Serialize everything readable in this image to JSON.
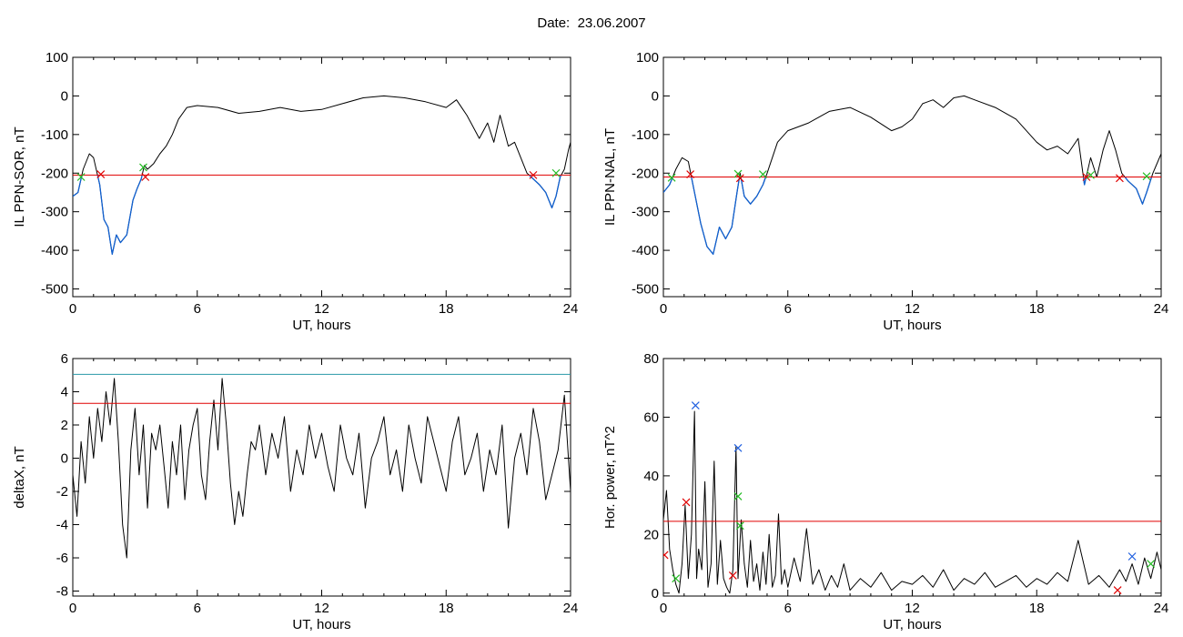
{
  "header": {
    "date_label": "Date:",
    "date_value": "23.06.2007"
  },
  "chart_data": [
    {
      "type": "line",
      "xlabel": "UT, hours",
      "ylabel": "IL PPN-SOR, nT",
      "xlim": [
        0,
        24
      ],
      "ylim": [
        -520,
        100
      ],
      "xticks": [
        0,
        6,
        12,
        18,
        24
      ],
      "yticks": [
        100,
        0,
        -100,
        -200,
        -300,
        -400,
        -500
      ],
      "threshold": {
        "value": -205,
        "color": "#e00000"
      },
      "below_color": "#1060d0",
      "marker_colors": {
        "red": "#e00000",
        "green": "#22bb22"
      },
      "series": [
        {
          "x": [
            0,
            0.25,
            0.5,
            0.8,
            1.0,
            1.3,
            1.5,
            1.7,
            1.9,
            2.1,
            2.3,
            2.6,
            2.9,
            3.1,
            3.3,
            3.45,
            3.6,
            3.9,
            4.2,
            4.5,
            4.8,
            5.1,
            5.5,
            6.0,
            7.0,
            8.0,
            9.0,
            10.0,
            11.0,
            12.0,
            13.0,
            14.0,
            15.0,
            16.0,
            17.0,
            18.0,
            18.5,
            19.0,
            19.3,
            19.6,
            20.0,
            20.3,
            20.6,
            21.0,
            21.3,
            21.6,
            21.9,
            22.2,
            22.5,
            22.8,
            23.1,
            23.3,
            23.5,
            23.7,
            23.9,
            24.0
          ],
          "y": [
            -260,
            -250,
            -190,
            -150,
            -160,
            -230,
            -320,
            -340,
            -410,
            -360,
            -380,
            -360,
            -270,
            -240,
            -215,
            -180,
            -190,
            -175,
            -150,
            -130,
            -100,
            -60,
            -30,
            -25,
            -30,
            -45,
            -40,
            -30,
            -40,
            -35,
            -20,
            -5,
            0,
            -5,
            -15,
            -30,
            -10,
            -50,
            -80,
            -110,
            -70,
            -120,
            -50,
            -130,
            -120,
            -160,
            -200,
            -215,
            -230,
            -250,
            -290,
            -260,
            -210,
            -190,
            -140,
            -120
          ]
        }
      ],
      "markers": [
        {
          "x": 0.4,
          "y": -210,
          "color": "green"
        },
        {
          "x": 1.35,
          "y": -203,
          "color": "red"
        },
        {
          "x": 3.4,
          "y": -185,
          "color": "green"
        },
        {
          "x": 3.5,
          "y": -210,
          "color": "red"
        },
        {
          "x": 22.2,
          "y": -205,
          "color": "red"
        },
        {
          "x": 23.3,
          "y": -200,
          "color": "green"
        }
      ]
    },
    {
      "type": "line",
      "xlabel": "UT, hours",
      "ylabel": "IL PPN-NAL, nT",
      "xlim": [
        0,
        24
      ],
      "ylim": [
        -520,
        100
      ],
      "xticks": [
        0,
        6,
        12,
        18,
        24
      ],
      "yticks": [
        100,
        0,
        -100,
        -200,
        -300,
        -400,
        -500
      ],
      "threshold": {
        "value": -210,
        "color": "#e00000"
      },
      "below_color": "#1060d0",
      "marker_colors": {
        "red": "#e00000",
        "green": "#22bb22"
      },
      "series": [
        {
          "x": [
            0,
            0.3,
            0.6,
            0.9,
            1.2,
            1.5,
            1.8,
            2.1,
            2.4,
            2.7,
            3.0,
            3.3,
            3.55,
            3.7,
            3.9,
            4.2,
            4.5,
            4.8,
            5.0,
            5.5,
            6.0,
            7.0,
            8.0,
            9.0,
            10.0,
            11.0,
            11.5,
            12.0,
            12.5,
            13.0,
            13.5,
            14.0,
            14.5,
            15.0,
            16.0,
            17.0,
            18.0,
            18.5,
            19.0,
            19.5,
            20.0,
            20.3,
            20.6,
            20.9,
            21.2,
            21.5,
            21.8,
            22.1,
            22.4,
            22.8,
            23.1,
            23.3,
            23.6,
            24.0
          ],
          "y": [
            -250,
            -230,
            -190,
            -160,
            -170,
            -250,
            -330,
            -390,
            -410,
            -340,
            -370,
            -340,
            -250,
            -200,
            -260,
            -280,
            -260,
            -230,
            -200,
            -120,
            -90,
            -70,
            -40,
            -30,
            -55,
            -90,
            -80,
            -60,
            -20,
            -10,
            -30,
            -5,
            0,
            -10,
            -30,
            -60,
            -120,
            -140,
            -130,
            -150,
            -110,
            -230,
            -160,
            -210,
            -140,
            -90,
            -140,
            -200,
            -220,
            -240,
            -280,
            -250,
            -200,
            -150
          ]
        }
      ],
      "markers": [
        {
          "x": 0.4,
          "y": -212,
          "color": "green"
        },
        {
          "x": 1.3,
          "y": -203,
          "color": "red"
        },
        {
          "x": 3.6,
          "y": -202,
          "color": "green"
        },
        {
          "x": 3.7,
          "y": -213,
          "color": "red"
        },
        {
          "x": 4.8,
          "y": -203,
          "color": "green"
        },
        {
          "x": 20.4,
          "y": -210,
          "color": "red"
        },
        {
          "x": 20.6,
          "y": -205,
          "color": "green"
        },
        {
          "x": 22.0,
          "y": -213,
          "color": "red"
        },
        {
          "x": 23.3,
          "y": -208,
          "color": "green"
        }
      ]
    },
    {
      "type": "line",
      "xlabel": "UT, hours",
      "ylabel": "deltaX, nT",
      "xlim": [
        0,
        24
      ],
      "ylim": [
        -8.3,
        6
      ],
      "xticks": [
        0,
        6,
        12,
        18,
        24
      ],
      "yticks": [
        6,
        4,
        2,
        0,
        -2,
        -4,
        -6,
        -8
      ],
      "thresholds": [
        {
          "value": 5.05,
          "color": "#2a9aa8"
        },
        {
          "value": 3.3,
          "color": "#e00000"
        }
      ],
      "series": [
        {
          "x": [
            0,
            0.2,
            0.4,
            0.6,
            0.8,
            1.0,
            1.2,
            1.4,
            1.6,
            1.8,
            2.0,
            2.2,
            2.4,
            2.6,
            2.8,
            3.0,
            3.2,
            3.4,
            3.6,
            3.8,
            4.0,
            4.2,
            4.4,
            4.6,
            4.8,
            5.0,
            5.2,
            5.4,
            5.6,
            5.8,
            6.0,
            6.2,
            6.4,
            6.6,
            6.8,
            7.0,
            7.2,
            7.4,
            7.6,
            7.8,
            8.0,
            8.2,
            8.4,
            8.6,
            8.8,
            9.0,
            9.3,
            9.6,
            9.9,
            10.2,
            10.5,
            10.8,
            11.1,
            11.4,
            11.7,
            12.0,
            12.3,
            12.6,
            12.9,
            13.2,
            13.5,
            13.8,
            14.1,
            14.4,
            14.7,
            15.0,
            15.3,
            15.6,
            15.9,
            16.2,
            16.5,
            16.8,
            17.1,
            17.4,
            17.7,
            18.0,
            18.3,
            18.6,
            18.9,
            19.2,
            19.5,
            19.8,
            20.1,
            20.4,
            20.7,
            21.0,
            21.3,
            21.6,
            21.9,
            22.2,
            22.5,
            22.8,
            23.1,
            23.4,
            23.7,
            24.0
          ],
          "y": [
            -1,
            -3.5,
            1,
            -1.5,
            2.5,
            0,
            3,
            1,
            4,
            2,
            4.8,
            1,
            -4,
            -6,
            0.5,
            3,
            -1,
            2,
            -3,
            1.5,
            0.5,
            2,
            -0.5,
            -3,
            1,
            -1,
            2,
            -2.5,
            0.5,
            2,
            3,
            -1,
            -2.5,
            1,
            3.5,
            0.5,
            4.8,
            2,
            -1.5,
            -4,
            -2,
            -3.5,
            -1,
            1,
            0.5,
            2,
            -1,
            1.5,
            0,
            2.5,
            -2,
            0.5,
            -1,
            2,
            0,
            1.5,
            -0.5,
            -2,
            2,
            0,
            -1,
            1.5,
            -3,
            0,
            1,
            2.5,
            -1,
            0.5,
            -2,
            2,
            0,
            -1.5,
            2.5,
            1,
            -0.5,
            -2,
            1,
            2.5,
            -1,
            0,
            1.5,
            -2,
            0.5,
            -1,
            2,
            -4.2,
            0,
            1.5,
            -1,
            3,
            1,
            -2.5,
            -1,
            0.5,
            3.8,
            -2
          ]
        }
      ]
    },
    {
      "type": "line",
      "xlabel": "UT, hours",
      "ylabel": "Hor. power, nT^2",
      "xlim": [
        0,
        24
      ],
      "ylim": [
        -1,
        80
      ],
      "xticks": [
        0,
        6,
        12,
        18,
        24
      ],
      "yticks": [
        80,
        60,
        40,
        20,
        0
      ],
      "threshold": {
        "value": 24.5,
        "color": "#e00000"
      },
      "marker_colors": {
        "red": "#e00000",
        "green": "#22bb22",
        "blue": "#2060e0"
      },
      "series": [
        {
          "x": [
            0,
            0.15,
            0.3,
            0.45,
            0.6,
            0.75,
            0.9,
            1.05,
            1.2,
            1.35,
            1.5,
            1.6,
            1.7,
            1.85,
            2.0,
            2.15,
            2.3,
            2.45,
            2.6,
            2.75,
            2.9,
            3.05,
            3.2,
            3.35,
            3.5,
            3.6,
            3.75,
            3.9,
            4.05,
            4.2,
            4.35,
            4.5,
            4.65,
            4.8,
            4.95,
            5.1,
            5.25,
            5.4,
            5.55,
            5.7,
            5.85,
            6.0,
            6.3,
            6.6,
            6.9,
            7.2,
            7.5,
            7.8,
            8.1,
            8.4,
            8.7,
            9.0,
            9.5,
            10.0,
            10.5,
            11.0,
            11.5,
            12.0,
            12.5,
            13.0,
            13.5,
            14.0,
            14.5,
            15.0,
            15.5,
            16.0,
            16.5,
            17.0,
            17.5,
            18.0,
            18.5,
            19.0,
            19.5,
            20.0,
            20.5,
            21.0,
            21.5,
            22.0,
            22.3,
            22.6,
            22.9,
            23.2,
            23.5,
            23.8,
            24.0
          ],
          "y": [
            25,
            35,
            15,
            8,
            3,
            0,
            10,
            30,
            5,
            20,
            62,
            5,
            15,
            8,
            38,
            2,
            10,
            45,
            3,
            18,
            5,
            2,
            0,
            8,
            50,
            5,
            25,
            10,
            2,
            18,
            4,
            10,
            1,
            14,
            3,
            20,
            2,
            6,
            27,
            3,
            8,
            2,
            12,
            4,
            22,
            3,
            8,
            1,
            6,
            2,
            10,
            1,
            5,
            2,
            7,
            1,
            4,
            3,
            6,
            2,
            8,
            1,
            5,
            3,
            7,
            2,
            4,
            6,
            2,
            5,
            3,
            7,
            4,
            18,
            3,
            6,
            2,
            8,
            4,
            10,
            3,
            12,
            5,
            14,
            8
          ]
        }
      ],
      "markers": [
        {
          "x": 0.05,
          "y": 13,
          "color": "red"
        },
        {
          "x": 0.6,
          "y": 5,
          "color": "green"
        },
        {
          "x": 1.1,
          "y": 31,
          "color": "red"
        },
        {
          "x": 1.55,
          "y": 64,
          "color": "blue"
        },
        {
          "x": 3.35,
          "y": 6,
          "color": "red"
        },
        {
          "x": 3.6,
          "y": 49.5,
          "color": "blue"
        },
        {
          "x": 3.6,
          "y": 33,
          "color": "green"
        },
        {
          "x": 3.7,
          "y": 23,
          "color": "green"
        },
        {
          "x": 21.9,
          "y": 1,
          "color": "red"
        },
        {
          "x": 22.6,
          "y": 12.5,
          "color": "blue"
        },
        {
          "x": 23.5,
          "y": 10,
          "color": "green"
        }
      ]
    }
  ]
}
